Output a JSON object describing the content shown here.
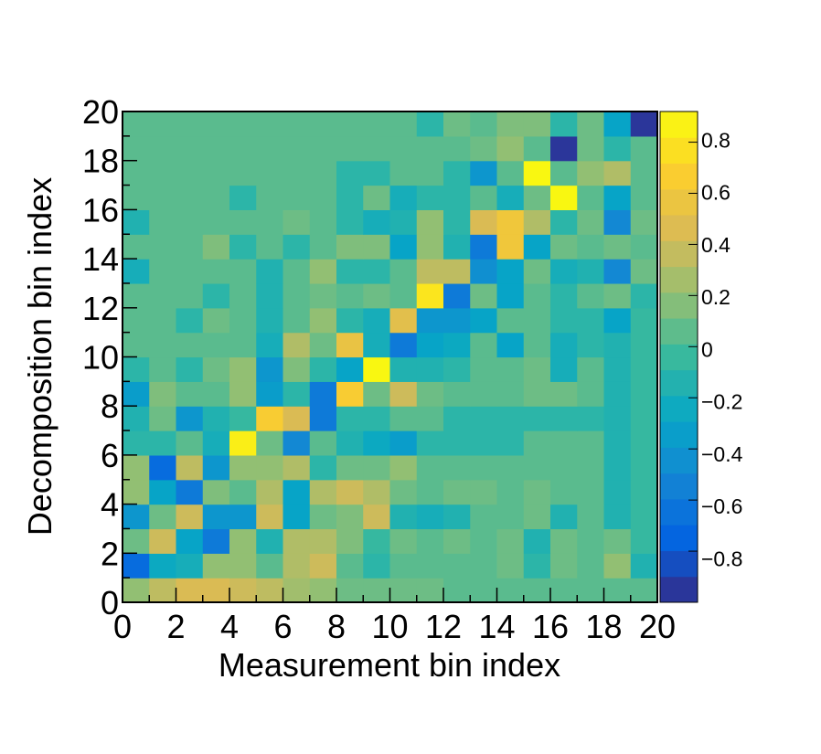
{
  "chart_data": {
    "type": "heatmap",
    "title": "",
    "xlabel": "Measurement bin index",
    "ylabel": "Decomposition bin index",
    "xlim": [
      0,
      20
    ],
    "ylim": [
      0,
      20
    ],
    "x_ticks": [
      "0",
      "2",
      "4",
      "6",
      "8",
      "10",
      "12",
      "14",
      "16",
      "18",
      "20"
    ],
    "y_ticks": [
      "0",
      "2",
      "4",
      "6",
      "8",
      "10",
      "12",
      "14",
      "16",
      "18",
      "20"
    ],
    "zlim": [
      -1.0,
      0.92
    ],
    "z_ticks": [
      "−0.8",
      "−0.6",
      "−0.4",
      "−0.2",
      "0",
      "0.2",
      "0.4",
      "0.6",
      "0.8"
    ],
    "z_tick_values": [
      -0.8,
      -0.6,
      -0.4,
      -0.2,
      0,
      0.2,
      0.4,
      0.6,
      0.8
    ],
    "palette": "kBird",
    "colorscale": [
      "#352a87",
      "#0363e1",
      "#1485d4",
      "#06a7c6",
      "#38b99e",
      "#92bf73",
      "#d9ba56",
      "#fcce2e",
      "#f9fb0e"
    ],
    "rows_bottom_to_top": [
      [
        0.2,
        0.35,
        0.45,
        0.45,
        0.4,
        0.35,
        0.25,
        0.2,
        0.1,
        0.1,
        0.1,
        0.1,
        0.05,
        0.05,
        0.05,
        0.05,
        0.05,
        0.05,
        0.05,
        0.05
      ],
      [
        -0.7,
        -0.25,
        -0.2,
        0.2,
        0.2,
        0.05,
        0.3,
        0.4,
        0.05,
        -0.1,
        0.05,
        0.05,
        0.05,
        0.05,
        0.1,
        -0.1,
        0.1,
        0.05,
        0.2,
        -0.15
      ],
      [
        0.1,
        0.4,
        -0.3,
        -0.6,
        0.2,
        -0.15,
        0.3,
        0.3,
        0.15,
        -0.05,
        0.1,
        0.05,
        0.1,
        0.05,
        0.1,
        -0.15,
        0.1,
        0.05,
        0.1,
        -0.05
      ],
      [
        -0.4,
        0.1,
        0.4,
        -0.4,
        -0.4,
        0.4,
        -0.3,
        0.1,
        0.15,
        0.4,
        -0.15,
        -0.2,
        -0.15,
        0.05,
        0.05,
        0.1,
        -0.15,
        0.05,
        -0.15,
        -0.05
      ],
      [
        0.2,
        -0.3,
        -0.6,
        0.15,
        0.05,
        0.3,
        -0.3,
        0.3,
        0.4,
        0.3,
        0.1,
        0.05,
        0.1,
        0.1,
        0.05,
        0.1,
        0.05,
        0.05,
        -0.15,
        -0.05
      ],
      [
        0.2,
        -0.7,
        0.35,
        -0.4,
        0.2,
        0.2,
        0.3,
        -0.1,
        0.1,
        0.1,
        0.2,
        0.05,
        0.05,
        0.05,
        0.05,
        0.05,
        0.05,
        0.05,
        -0.15,
        -0.05
      ],
      [
        -0.1,
        -0.1,
        0.05,
        -0.2,
        0.85,
        0.1,
        -0.5,
        0.05,
        -0.15,
        -0.25,
        -0.35,
        -0.1,
        -0.1,
        -0.1,
        -0.1,
        0.05,
        0.05,
        0.05,
        -0.15,
        -0.05
      ],
      [
        -0.15,
        0.1,
        -0.4,
        -0.15,
        -0.05,
        0.65,
        0.45,
        -0.6,
        -0.1,
        -0.1,
        0.05,
        0.05,
        -0.1,
        -0.1,
        -0.1,
        -0.1,
        -0.1,
        -0.1,
        -0.15,
        -0.05
      ],
      [
        -0.35,
        0.15,
        0.05,
        0.05,
        0.2,
        -0.35,
        -0.1,
        -0.6,
        0.65,
        0.1,
        0.4,
        0.1,
        0.05,
        0.05,
        0.05,
        0.1,
        0.1,
        0.05,
        -0.15,
        -0.05
      ],
      [
        -0.1,
        0.05,
        -0.1,
        0.1,
        0.2,
        -0.4,
        0.15,
        -0.1,
        -0.3,
        0.9,
        -0.15,
        -0.15,
        -0.1,
        0.05,
        0.05,
        0.1,
        -0.2,
        0.05,
        -0.15,
        -0.05
      ],
      [
        0.05,
        0.05,
        0.05,
        0.05,
        0.05,
        -0.2,
        0.3,
        0.1,
        0.55,
        -0.2,
        -0.6,
        -0.3,
        -0.25,
        0.05,
        -0.3,
        0.05,
        -0.2,
        -0.1,
        -0.15,
        -0.05
      ],
      [
        0.05,
        0.05,
        -0.1,
        0.1,
        0.05,
        -0.15,
        0.05,
        0.2,
        -0.1,
        -0.2,
        0.5,
        -0.4,
        -0.4,
        -0.3,
        0.05,
        0.05,
        -0.1,
        -0.1,
        -0.3,
        -0.05
      ],
      [
        0.05,
        0.05,
        0.05,
        -0.1,
        0.05,
        -0.15,
        0.05,
        0.1,
        0.05,
        0.1,
        0.05,
        0.8,
        -0.6,
        0.1,
        -0.3,
        0.05,
        -0.1,
        0.05,
        0.1,
        -0.1
      ],
      [
        -0.2,
        0.05,
        0.05,
        0.05,
        0.05,
        -0.15,
        0.05,
        0.2,
        -0.1,
        -0.1,
        0.05,
        0.35,
        0.35,
        -0.45,
        -0.3,
        0.1,
        -0.2,
        -0.15,
        -0.5,
        0.1
      ],
      [
        0.05,
        0.05,
        0.05,
        0.15,
        -0.1,
        0.05,
        -0.1,
        0.05,
        0.15,
        0.15,
        -0.3,
        0.2,
        -0.15,
        -0.6,
        0.6,
        -0.3,
        0.1,
        0.05,
        0.1,
        0.05
      ],
      [
        -0.15,
        0.05,
        0.05,
        0.05,
        0.05,
        0.05,
        0.1,
        0.05,
        -0.1,
        -0.2,
        -0.15,
        0.2,
        -0.1,
        0.45,
        0.6,
        0.3,
        -0.1,
        0.1,
        -0.5,
        0.1
      ],
      [
        0.05,
        0.05,
        0.05,
        0.05,
        -0.1,
        0.05,
        0.05,
        0.05,
        -0.1,
        0.1,
        -0.2,
        -0.1,
        -0.1,
        0.05,
        -0.2,
        0.1,
        0.9,
        0.05,
        -0.3,
        0.05
      ],
      [
        0.05,
        0.05,
        0.05,
        0.05,
        0.05,
        0.05,
        0.05,
        0.05,
        -0.1,
        -0.1,
        0.05,
        0.05,
        -0.1,
        -0.4,
        0.05,
        0.9,
        0.05,
        0.2,
        0.3,
        0.05
      ],
      [
        0.05,
        0.05,
        0.05,
        0.05,
        0.05,
        0.05,
        0.05,
        0.05,
        0.05,
        0.05,
        0.05,
        0.05,
        0.05,
        0.1,
        0.2,
        0.05,
        -0.95,
        0.1,
        -0.1,
        0.05
      ],
      [
        0.05,
        0.05,
        0.05,
        0.05,
        0.05,
        0.05,
        0.05,
        0.05,
        0.05,
        0.05,
        0.05,
        -0.1,
        0.1,
        0.05,
        0.15,
        0.15,
        -0.1,
        0.1,
        -0.3,
        -0.95
      ]
    ]
  }
}
